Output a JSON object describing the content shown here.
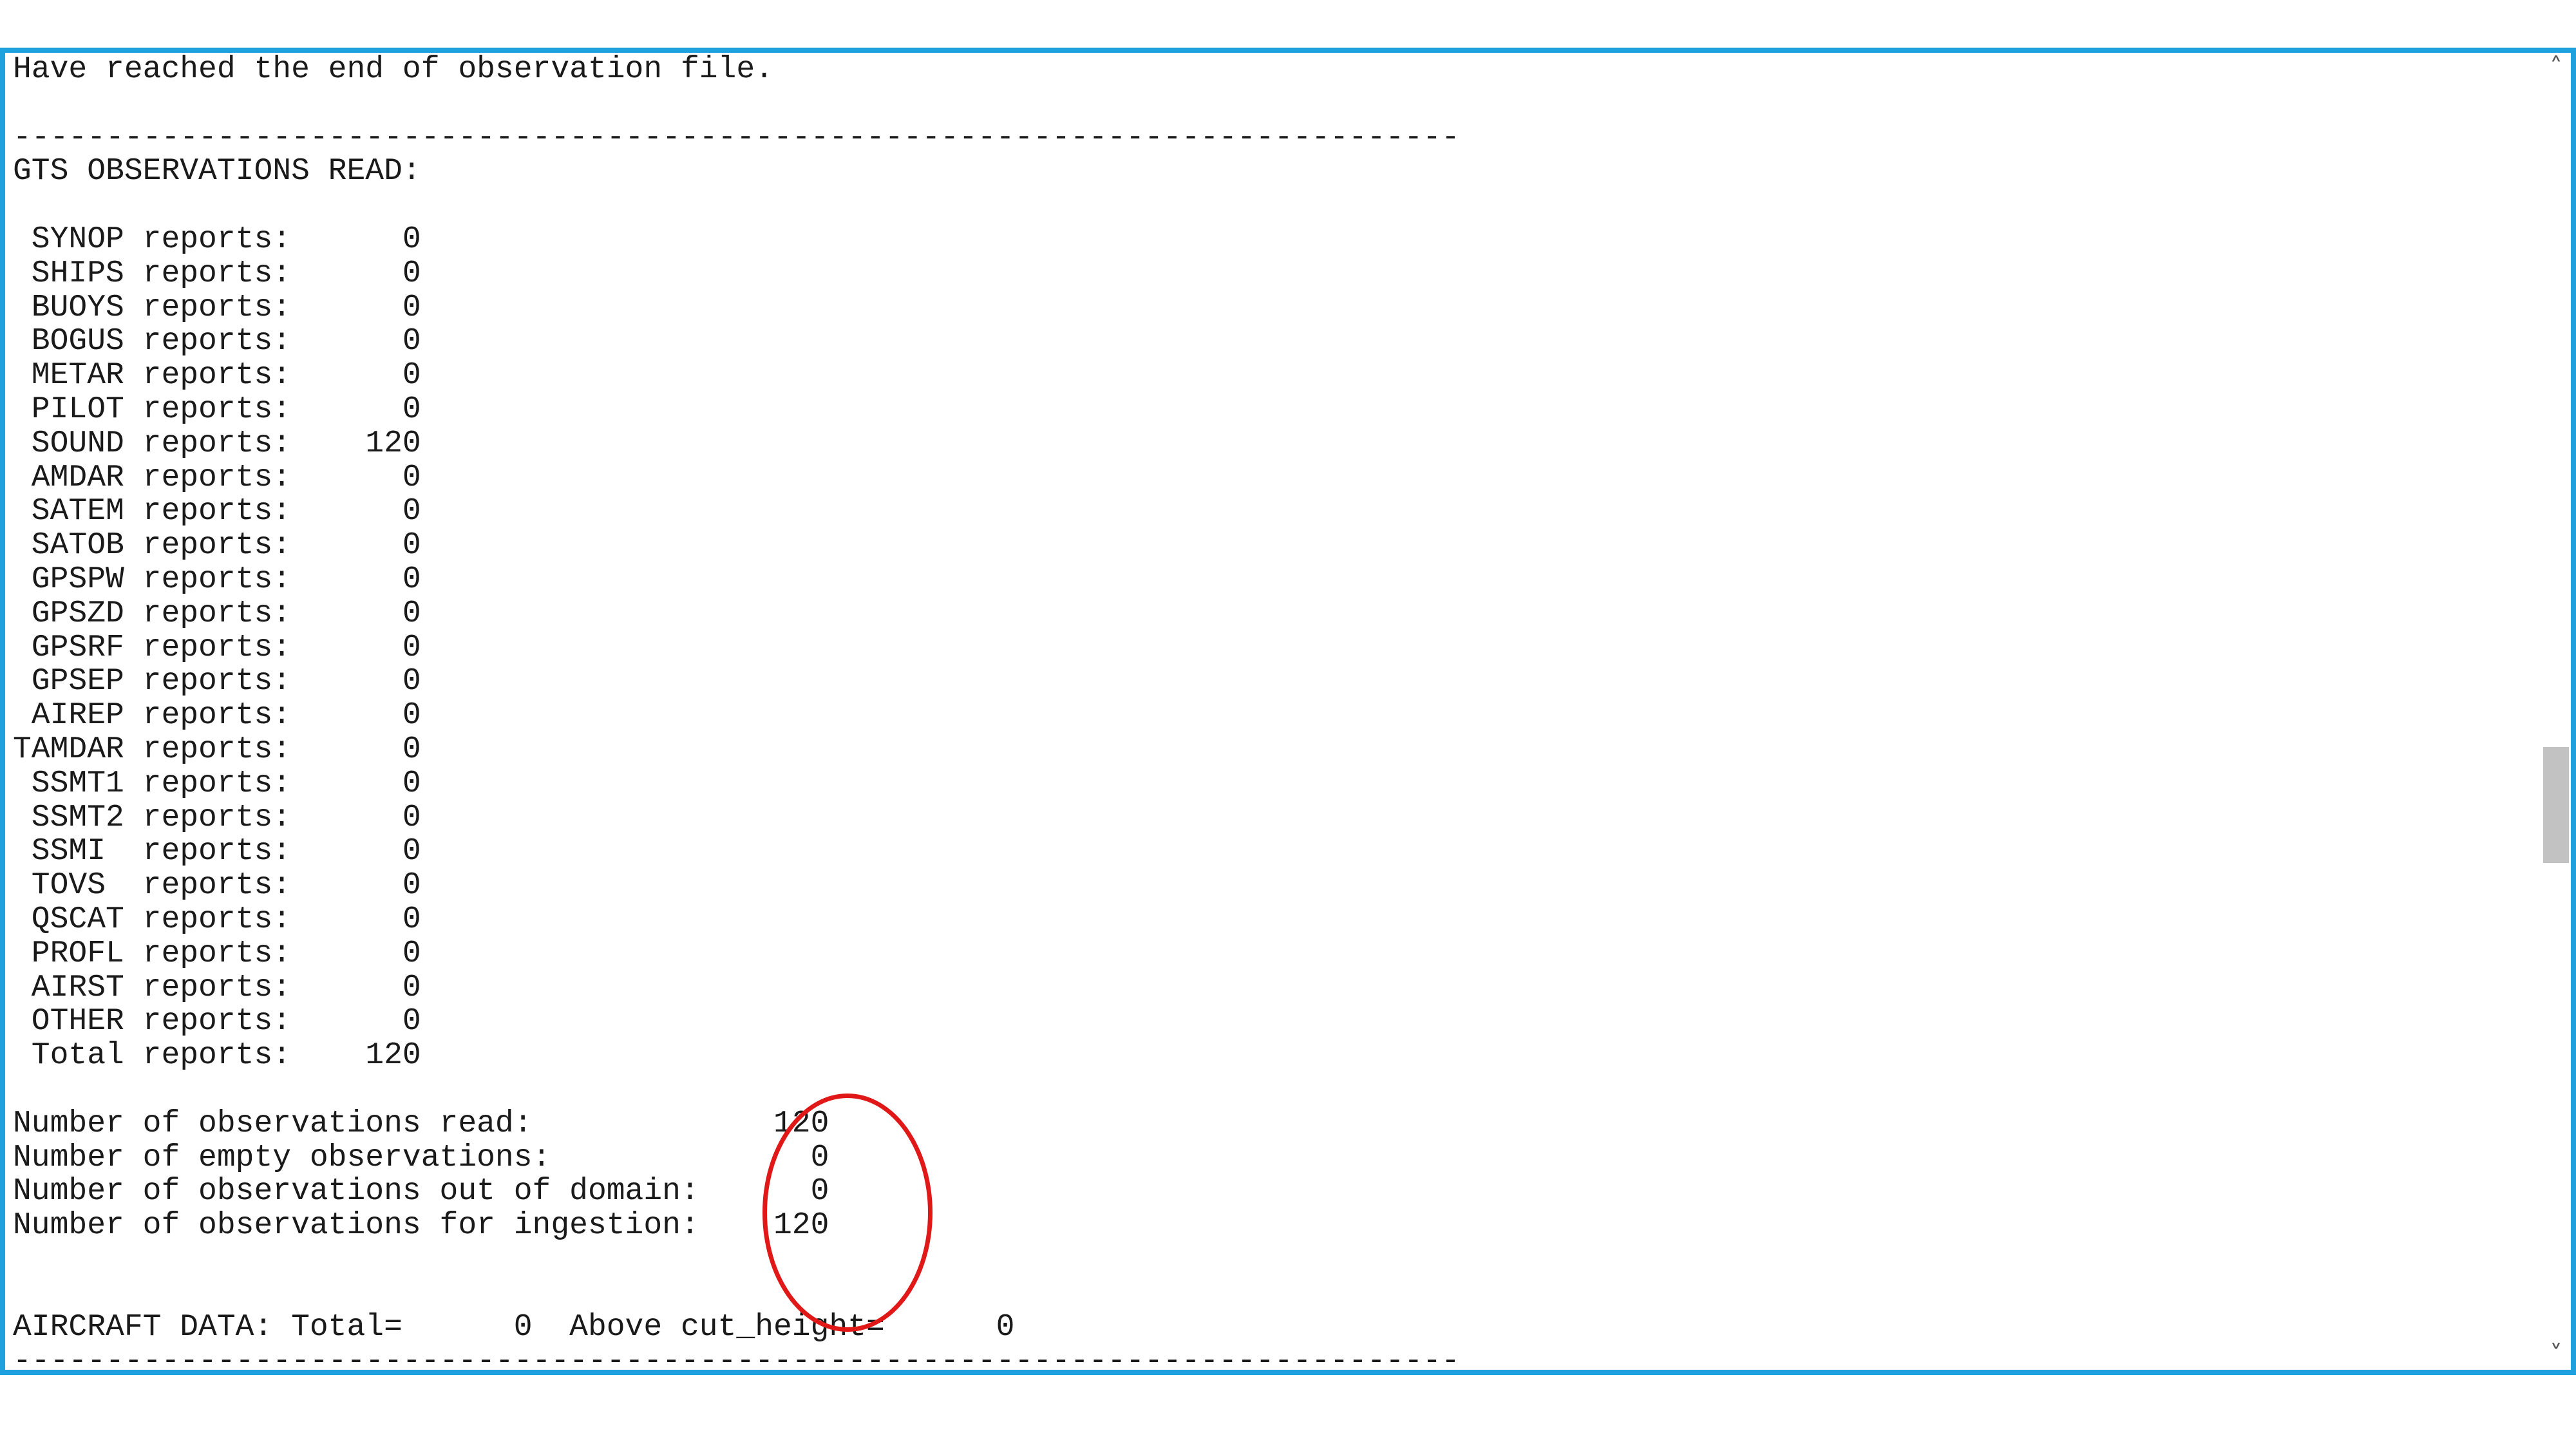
{
  "terminal": {
    "lines": [
      "Have reached the end of observation file.",
      "",
      "------------------------------------------------------------------------------",
      "GTS OBSERVATIONS READ:",
      "",
      " SYNOP reports:      0",
      " SHIPS reports:      0",
      " BUOYS reports:      0",
      " BOGUS reports:      0",
      " METAR reports:      0",
      " PILOT reports:      0",
      " SOUND reports:    120",
      " AMDAR reports:      0",
      " SATEM reports:      0",
      " SATOB reports:      0",
      " GPSPW reports:      0",
      " GPSZD reports:      0",
      " GPSRF reports:      0",
      " GPSEP reports:      0",
      " AIREP reports:      0",
      "TAMDAR reports:      0",
      " SSMT1 reports:      0",
      " SSMT2 reports:      0",
      " SSMI  reports:      0",
      " TOVS  reports:      0",
      " QSCAT reports:      0",
      " PROFL reports:      0",
      " AIRST reports:      0",
      " OTHER reports:      0",
      " Total reports:    120",
      "",
      "Number of observations read:             120",
      "Number of empty observations:              0",
      "Number of observations out of domain:      0",
      "Number of observations for ingestion:    120",
      "",
      "",
      "AIRCRAFT DATA: Total=      0  Above cut_height=      0",
      "------------------------------------------------------------------------------"
    ]
  },
  "scrollbar": {
    "up_icon": "˄",
    "down_icon": "˅"
  },
  "colors": {
    "frame_border": "#1ea1dc",
    "annotation": "#e01818"
  }
}
